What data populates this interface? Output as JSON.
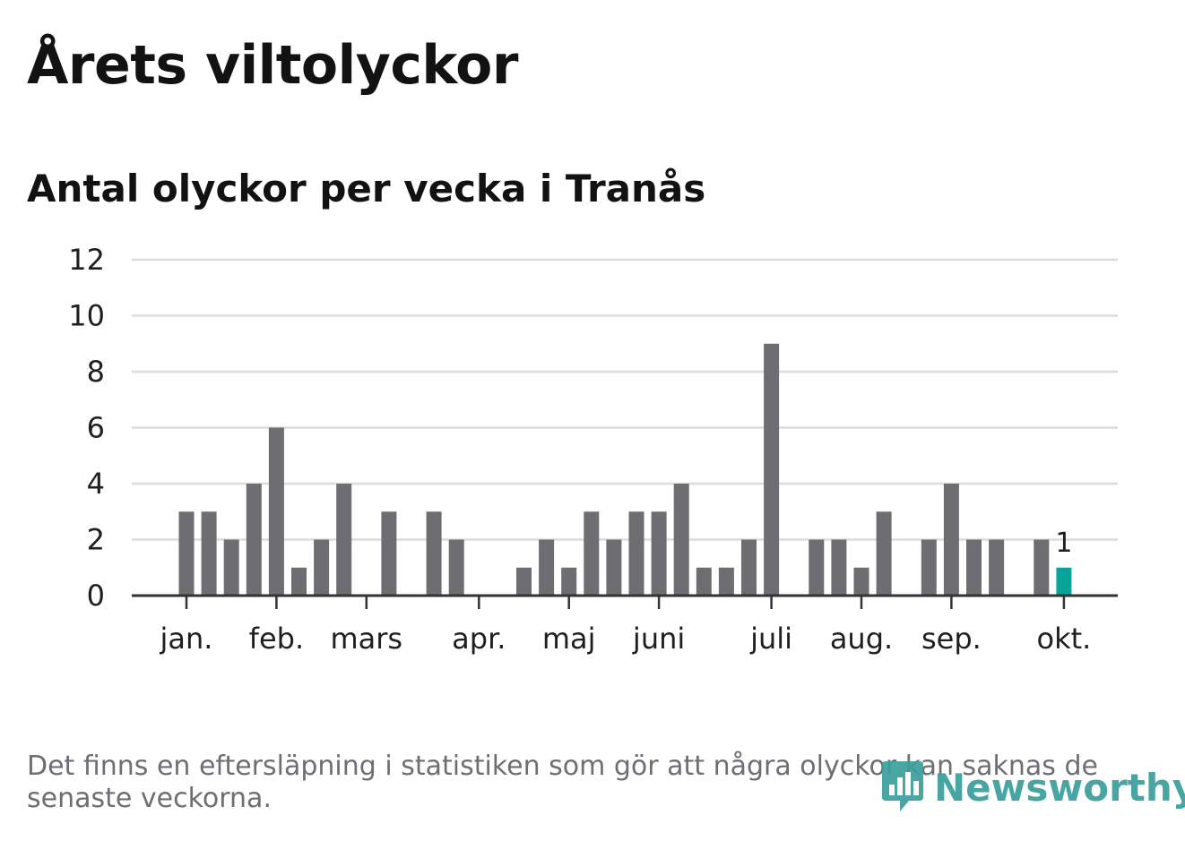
{
  "title": "Årets viltolyckor",
  "subtitle": "Antal olyckor per vecka i Tranås",
  "footnote": "Det finns en eftersläpning i statistiken som gör att några olyckor kan saknas de senaste veckorna.",
  "logo": {
    "text": "Newsworthy",
    "icon": "newsworthy-logo-icon",
    "color": "#3a9e9a"
  },
  "colors": {
    "bar": "#6e6d72",
    "highlight": "#0aa39a",
    "grid": "#dcdcdc",
    "axis": "#333333"
  },
  "chart_data": {
    "type": "bar",
    "title": "Antal olyckor per vecka i Tranås",
    "xlabel": "",
    "ylabel": "",
    "ylim": [
      0,
      12
    ],
    "yticks": [
      0,
      2,
      4,
      6,
      8,
      10,
      12
    ],
    "grid": true,
    "weeks": [
      1,
      2,
      3,
      4,
      5,
      6,
      7,
      8,
      9,
      10,
      11,
      12,
      13,
      14,
      15,
      16,
      17,
      18,
      19,
      20,
      21,
      22,
      23,
      24,
      25,
      26,
      27,
      28,
      29,
      30,
      31,
      32,
      33,
      34,
      35,
      36,
      37,
      38,
      39,
      40
    ],
    "values": [
      3,
      3,
      2,
      4,
      6,
      1,
      2,
      4,
      0,
      3,
      0,
      3,
      2,
      0,
      0,
      1,
      2,
      1,
      3,
      2,
      3,
      3,
      4,
      1,
      1,
      2,
      9,
      0,
      2,
      2,
      1,
      3,
      0,
      2,
      4,
      2,
      2,
      0,
      2,
      1
    ],
    "highlight_index": 39,
    "data_labels": [
      {
        "index": 39,
        "text": "1"
      }
    ],
    "month_ticks": [
      {
        "label": "jan.",
        "week": 1
      },
      {
        "label": "feb.",
        "week": 5
      },
      {
        "label": "mars",
        "week": 9
      },
      {
        "label": "apr.",
        "week": 14
      },
      {
        "label": "maj",
        "week": 18
      },
      {
        "label": "juni",
        "week": 22
      },
      {
        "label": "juli",
        "week": 27
      },
      {
        "label": "aug.",
        "week": 31
      },
      {
        "label": "sep.",
        "week": 35
      },
      {
        "label": "okt.",
        "week": 40
      }
    ]
  }
}
